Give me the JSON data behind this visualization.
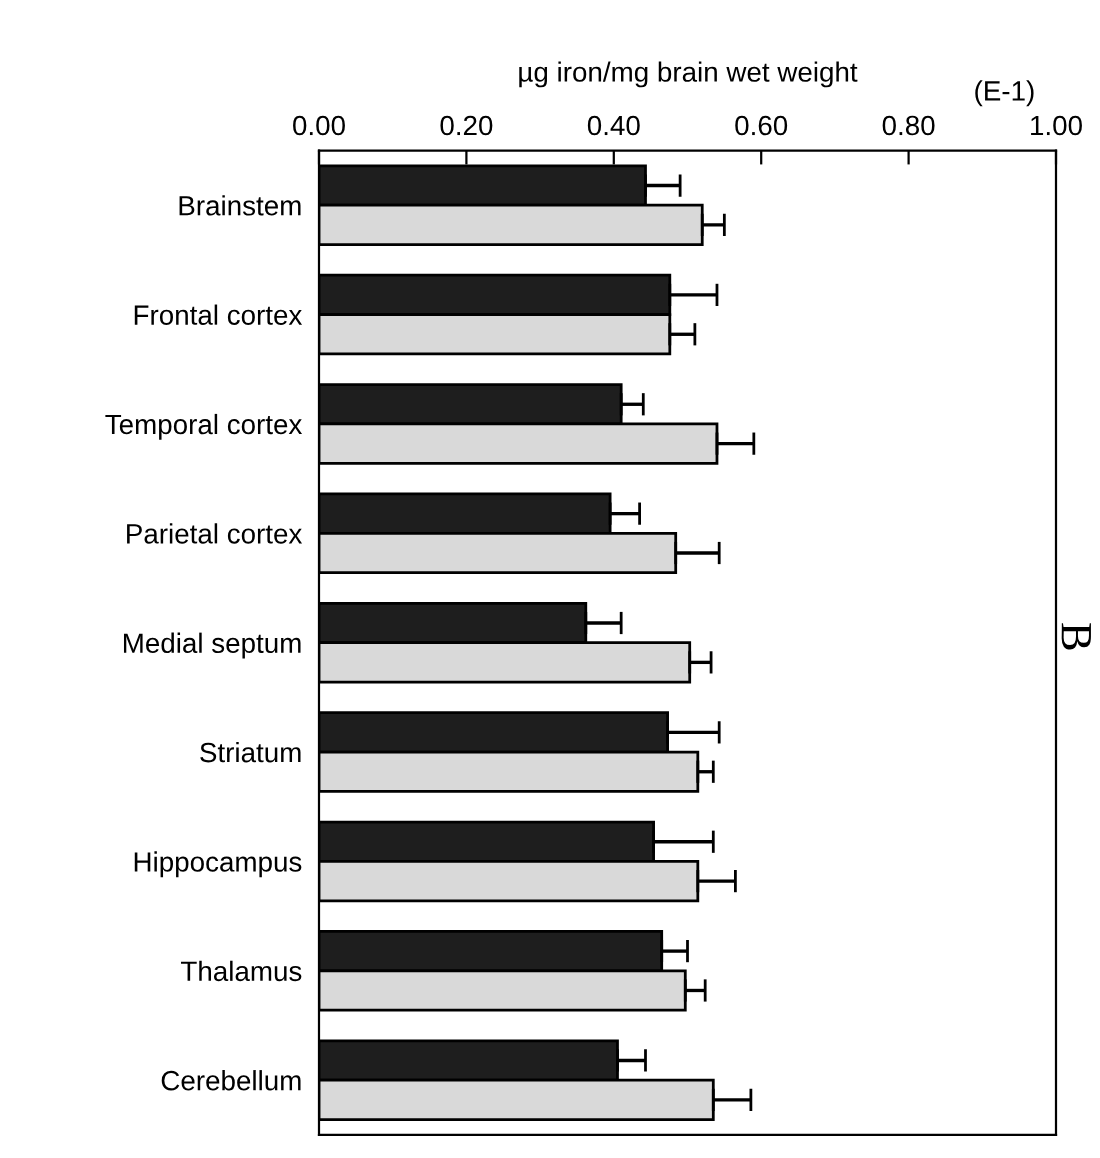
{
  "chart_data": {
    "type": "bar",
    "orientation": "horizontal",
    "xlabel": "µg iron/mg brain wet weight",
    "categories": [
      "Brainstem",
      "Frontal cortex",
      "Temporal cortex",
      "Parietal cortex",
      "Medial septum",
      "Striatum",
      "Hippocampus",
      "Thalamus",
      "Cerebellum"
    ],
    "series": [
      {
        "color": "#1e1e1e",
        "values": [
          0.443,
          0.476,
          0.41,
          0.395,
          0.362,
          0.473,
          0.454,
          0.465,
          0.405
        ],
        "errors": [
          [
            0.443,
            0.49
          ],
          [
            0.476,
            0.54
          ],
          [
            0.41,
            0.44
          ],
          [
            0.395,
            0.435
          ],
          [
            0.362,
            0.41
          ],
          [
            0.473,
            0.543
          ],
          [
            0.454,
            0.535
          ],
          [
            0.465,
            0.5
          ],
          [
            0.405,
            0.443
          ]
        ]
      },
      {
        "color": "#d9d9d9",
        "values": [
          0.52,
          0.476,
          0.54,
          0.484,
          0.503,
          0.514,
          0.514,
          0.497,
          0.535
        ],
        "errors": [
          [
            0.52,
            0.55
          ],
          [
            0.476,
            0.51
          ],
          [
            0.54,
            0.59
          ],
          [
            0.484,
            0.543
          ],
          [
            0.503,
            0.532
          ],
          [
            0.514,
            0.535
          ],
          [
            0.514,
            0.565
          ],
          [
            0.497,
            0.524
          ],
          [
            0.535,
            0.586
          ]
        ]
      }
    ],
    "xlim": [
      0,
      1
    ],
    "xticks": [
      {
        "value": 0,
        "label": "0.00"
      },
      {
        "value": 0.2,
        "label": "0.20"
      },
      {
        "value": 0.4,
        "label": "0.40"
      },
      {
        "value": 0.6,
        "label": "0.60"
      },
      {
        "value": 0.8,
        "label": "0.80"
      },
      {
        "value": 1,
        "label": "1.00"
      }
    ],
    "annotations": [
      "(E-1)",
      "B"
    ],
    "grid": false,
    "legend": false
  }
}
